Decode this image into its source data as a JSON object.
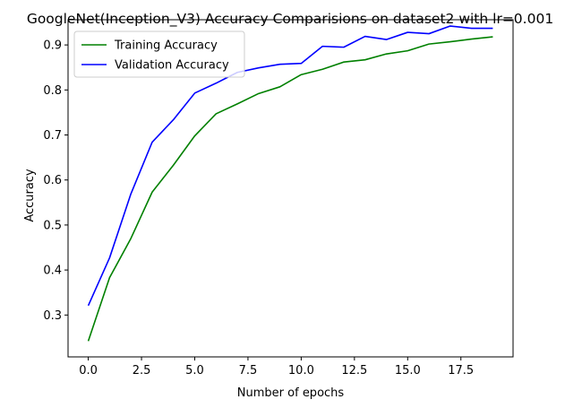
{
  "chart_data": {
    "type": "line",
    "title": "GoogleNet(Inception_V3) Accuracy Comparisions on dataset2 with lr=0.001",
    "xlabel": "Number of epochs",
    "ylabel": "Accuracy",
    "x": [
      0,
      1,
      2,
      3,
      4,
      5,
      6,
      7,
      8,
      9,
      10,
      11,
      12,
      13,
      14,
      15,
      16,
      17,
      18,
      19
    ],
    "xlim": [
      -0.95,
      19.95
    ],
    "ylim": [
      0.207,
      0.956
    ],
    "xticks": [
      0,
      2.5,
      5,
      7.5,
      10,
      12.5,
      15,
      17.5
    ],
    "xtick_labels": [
      "0.0",
      "2.5",
      "5.0",
      "7.5",
      "10.0",
      "12.5",
      "15.0",
      "17.5"
    ],
    "yticks": [
      0.3,
      0.4,
      0.5,
      0.6,
      0.7,
      0.8,
      0.9
    ],
    "ytick_labels": [
      "0.3",
      "0.4",
      "0.5",
      "0.6",
      "0.7",
      "0.8",
      "0.9"
    ],
    "grid": false,
    "legend_position": "top-left",
    "series": [
      {
        "name": "Training Accuracy",
        "color": "#008000",
        "values": [
          0.242,
          0.383,
          0.47,
          0.573,
          0.633,
          0.698,
          0.747,
          0.769,
          0.792,
          0.807,
          0.834,
          0.846,
          0.862,
          0.867,
          0.88,
          0.887,
          0.902,
          0.907,
          0.913,
          0.918
        ]
      },
      {
        "name": "Validation Accuracy",
        "color": "#0000ff",
        "values": [
          0.321,
          0.427,
          0.569,
          0.684,
          0.734,
          0.793,
          0.815,
          0.839,
          0.849,
          0.857,
          0.859,
          0.897,
          0.895,
          0.919,
          0.912,
          0.928,
          0.925,
          0.942,
          0.937,
          0.937
        ]
      }
    ]
  }
}
